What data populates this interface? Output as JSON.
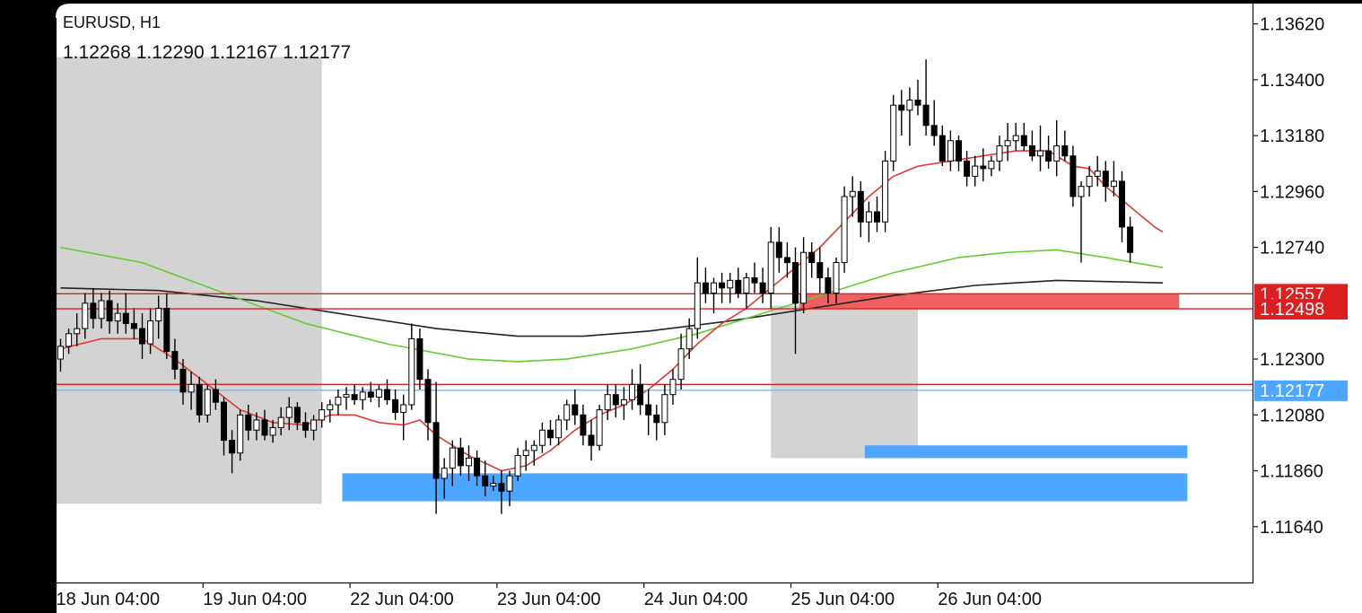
{
  "header": {
    "symbol_timeframe": "EURUSD, H1",
    "ohlc": "1.12268 1.12290 1.12167 1.12177"
  },
  "colors": {
    "background": "#ffffff",
    "frame": "#000000",
    "bull_candle": "#ffffff",
    "bear_candle": "#000000",
    "ma_fast": "#e53935",
    "ma_mid": "#66cc33",
    "ma_slow": "#222222",
    "support_zone": "#4da6ff",
    "resistance_zone": "#f06060",
    "session_box": "#d3d3d3",
    "level_line": "#dd1f1f",
    "bid_line": "#7fb8ee"
  },
  "chart_data": {
    "type": "candlestick",
    "symbol": "EURUSD",
    "timeframe": "H1",
    "ylim": [
      1.1142,
      1.137
    ],
    "y_ticks": [
      "1.13620",
      "1.13400",
      "1.13180",
      "1.12960",
      "1.12740",
      "1.12300",
      "1.12080",
      "1.11860",
      "1.11640"
    ],
    "x_ticks": [
      "18 Jun 04:00",
      "19 Jun 04:00",
      "22 Jun 04:00",
      "23 Jun 04:00",
      "24 Jun 04:00",
      "25 Jun 04:00",
      "26 Jun 04:00"
    ],
    "bar_count": 135,
    "x_tick_bars": [
      0,
      18,
      36,
      54,
      72,
      90,
      108
    ],
    "bid_price": 1.12177,
    "price_tags": [
      {
        "label": "1.12557",
        "price": 1.12557,
        "color": "#dd1f1f"
      },
      {
        "label": "1.12498",
        "price": 1.12498,
        "color": "#dd1f1f"
      },
      {
        "label": "1.12177",
        "price": 1.12177,
        "color": "#4da6ff"
      }
    ],
    "horizontal_lines": [
      {
        "price": 1.12557,
        "color": "#dd1f1f"
      },
      {
        "price": 1.12498,
        "color": "#dd1f1f"
      },
      {
        "price": 1.122,
        "color": "#dd1f1f"
      },
      {
        "price": 1.12177,
        "color": "#7fb8ee"
      }
    ],
    "zones": [
      {
        "type": "session",
        "bar_from": -1,
        "bar_to": 32,
        "p_top": 1.1349,
        "p_bottom": 1.1173
      },
      {
        "type": "session",
        "bar_from": 87,
        "bar_to": 105,
        "p_top": 1.1251,
        "p_bottom": 1.1191
      },
      {
        "type": "support",
        "bar_from": 34.5,
        "bar_to": 138,
        "p_top": 1.1185,
        "p_bottom": 1.1174
      },
      {
        "type": "support",
        "bar_from": 98.5,
        "bar_to": 138,
        "p_top": 1.1196,
        "p_bottom": 1.1191
      },
      {
        "type": "resistance",
        "bar_from": 90.5,
        "bar_to": 137,
        "p_top": 1.12557,
        "p_bottom": 1.12498
      }
    ],
    "candles": [
      [
        1.123,
        1.1238,
        1.1225,
        1.1235
      ],
      [
        1.1235,
        1.1242,
        1.1232,
        1.124
      ],
      [
        1.124,
        1.1248,
        1.1235,
        1.1242
      ],
      [
        1.1242,
        1.1256,
        1.1238,
        1.1252
      ],
      [
        1.1252,
        1.1258,
        1.1242,
        1.1246
      ],
      [
        1.1246,
        1.1256,
        1.1242,
        1.1253
      ],
      [
        1.1253,
        1.1257,
        1.124,
        1.1245
      ],
      [
        1.1245,
        1.1252,
        1.124,
        1.1248
      ],
      [
        1.1248,
        1.1256,
        1.124,
        1.1244
      ],
      [
        1.1244,
        1.125,
        1.1238,
        1.1242
      ],
      [
        1.1242,
        1.1248,
        1.123,
        1.1236
      ],
      [
        1.1236,
        1.125,
        1.1232,
        1.1245
      ],
      [
        1.1245,
        1.1255,
        1.1238,
        1.125
      ],
      [
        1.125,
        1.1256,
        1.123,
        1.1233
      ],
      [
        1.1233,
        1.1238,
        1.1222,
        1.1226
      ],
      [
        1.1226,
        1.123,
        1.1212,
        1.1217
      ],
      [
        1.1217,
        1.1225,
        1.121,
        1.122
      ],
      [
        1.122,
        1.1223,
        1.1205,
        1.1208
      ],
      [
        1.1208,
        1.122,
        1.1205,
        1.1218
      ],
      [
        1.1218,
        1.1222,
        1.121,
        1.1213
      ],
      [
        1.1213,
        1.1215,
        1.1192,
        1.1198
      ],
      [
        1.1198,
        1.1202,
        1.1185,
        1.1193
      ],
      [
        1.1193,
        1.121,
        1.119,
        1.1208
      ],
      [
        1.1208,
        1.1212,
        1.1198,
        1.1202
      ],
      [
        1.1202,
        1.1209,
        1.1198,
        1.1206
      ],
      [
        1.1206,
        1.121,
        1.1198,
        1.12
      ],
      [
        1.12,
        1.1206,
        1.1197,
        1.1203
      ],
      [
        1.1203,
        1.1211,
        1.12,
        1.1207
      ],
      [
        1.1207,
        1.1215,
        1.1202,
        1.1211
      ],
      [
        1.1211,
        1.1213,
        1.1202,
        1.1205
      ],
      [
        1.1205,
        1.1209,
        1.1199,
        1.1202
      ],
      [
        1.1202,
        1.1208,
        1.1198,
        1.1206
      ],
      [
        1.1206,
        1.1213,
        1.1203,
        1.121
      ],
      [
        1.121,
        1.1214,
        1.1205,
        1.1212
      ],
      [
        1.1212,
        1.1218,
        1.1208,
        1.1215
      ],
      [
        1.1215,
        1.1219,
        1.121,
        1.1216
      ],
      [
        1.1216,
        1.122,
        1.1212,
        1.1214
      ],
      [
        1.1214,
        1.1219,
        1.121,
        1.1217
      ],
      [
        1.1217,
        1.1221,
        1.1213,
        1.1215
      ],
      [
        1.1215,
        1.122,
        1.1211,
        1.1218
      ],
      [
        1.1218,
        1.1222,
        1.1212,
        1.1214
      ],
      [
        1.1214,
        1.1218,
        1.1206,
        1.1209
      ],
      [
        1.1209,
        1.1216,
        1.1198,
        1.1212
      ],
      [
        1.1212,
        1.1244,
        1.121,
        1.1238
      ],
      [
        1.1238,
        1.1242,
        1.1218,
        1.1222
      ],
      [
        1.1222,
        1.1226,
        1.1198,
        1.1205
      ],
      [
        1.1205,
        1.1221,
        1.1169,
        1.1183
      ],
      [
        1.1183,
        1.1191,
        1.1175,
        1.1187
      ],
      [
        1.1187,
        1.1198,
        1.118,
        1.1195
      ],
      [
        1.1195,
        1.1199,
        1.1184,
        1.1188
      ],
      [
        1.1188,
        1.1196,
        1.1182,
        1.1191
      ],
      [
        1.1191,
        1.1194,
        1.118,
        1.1184
      ],
      [
        1.1184,
        1.119,
        1.1176,
        1.118
      ],
      [
        1.118,
        1.1184,
        1.1178,
        1.1181
      ],
      [
        1.1181,
        1.1186,
        1.1169,
        1.1178
      ],
      [
        1.1178,
        1.1186,
        1.1172,
        1.1184
      ],
      [
        1.1184,
        1.1195,
        1.1182,
        1.1192
      ],
      [
        1.1192,
        1.1198,
        1.1186,
        1.1194
      ],
      [
        1.1194,
        1.1198,
        1.1188,
        1.1196
      ],
      [
        1.1196,
        1.1205,
        1.1193,
        1.1202
      ],
      [
        1.1202,
        1.1206,
        1.1196,
        1.1199
      ],
      [
        1.1199,
        1.1208,
        1.1196,
        1.1206
      ],
      [
        1.1206,
        1.1214,
        1.1202,
        1.1212
      ],
      [
        1.1212,
        1.1218,
        1.1204,
        1.1208
      ],
      [
        1.1208,
        1.1212,
        1.1196,
        1.12
      ],
      [
        1.12,
        1.1206,
        1.119,
        1.1196
      ],
      [
        1.1196,
        1.1212,
        1.1194,
        1.121
      ],
      [
        1.121,
        1.122,
        1.1206,
        1.1216
      ],
      [
        1.1216,
        1.122,
        1.1207,
        1.1212
      ],
      [
        1.1212,
        1.1219,
        1.1206,
        1.1214
      ],
      [
        1.1214,
        1.1226,
        1.121,
        1.122
      ],
      [
        1.122,
        1.1228,
        1.1208,
        1.1212
      ],
      [
        1.1212,
        1.1218,
        1.12,
        1.1208
      ],
      [
        1.1208,
        1.1212,
        1.1198,
        1.1205
      ],
      [
        1.1205,
        1.122,
        1.12,
        1.1216
      ],
      [
        1.1216,
        1.1226,
        1.1212,
        1.1222
      ],
      [
        1.1222,
        1.124,
        1.1218,
        1.1234
      ],
      [
        1.1234,
        1.1246,
        1.123,
        1.1242
      ],
      [
        1.1242,
        1.127,
        1.1238,
        1.126
      ],
      [
        1.126,
        1.1266,
        1.1252,
        1.1256
      ],
      [
        1.1256,
        1.1262,
        1.1248,
        1.126
      ],
      [
        1.126,
        1.1264,
        1.1252,
        1.1258
      ],
      [
        1.1258,
        1.1264,
        1.1252,
        1.1261
      ],
      [
        1.1261,
        1.1266,
        1.1254,
        1.1256
      ],
      [
        1.1256,
        1.1264,
        1.125,
        1.1262
      ],
      [
        1.1262,
        1.1268,
        1.1256,
        1.126
      ],
      [
        1.126,
        1.1266,
        1.1252,
        1.1256
      ],
      [
        1.1256,
        1.1282,
        1.125,
        1.1276
      ],
      [
        1.1276,
        1.1282,
        1.1264,
        1.127
      ],
      [
        1.127,
        1.1276,
        1.1262,
        1.1268
      ],
      [
        1.1268,
        1.1274,
        1.1232,
        1.1252
      ],
      [
        1.1252,
        1.1278,
        1.1248,
        1.1272
      ],
      [
        1.1272,
        1.1276,
        1.1262,
        1.1268
      ],
      [
        1.1268,
        1.1274,
        1.1256,
        1.1262
      ],
      [
        1.1262,
        1.1266,
        1.1252,
        1.1256
      ],
      [
        1.1256,
        1.127,
        1.1252,
        1.1268
      ],
      [
        1.1268,
        1.1298,
        1.1264,
        1.1294
      ],
      [
        1.1294,
        1.1302,
        1.1286,
        1.1296
      ],
      [
        1.1296,
        1.13,
        1.1278,
        1.1284
      ],
      [
        1.1284,
        1.1292,
        1.1276,
        1.1288
      ],
      [
        1.1288,
        1.1294,
        1.128,
        1.1284
      ],
      [
        1.1284,
        1.1312,
        1.128,
        1.1308
      ],
      [
        1.1308,
        1.1334,
        1.1304,
        1.133
      ],
      [
        1.133,
        1.1336,
        1.1318,
        1.1328
      ],
      [
        1.1328,
        1.1337,
        1.1314,
        1.1332
      ],
      [
        1.1332,
        1.134,
        1.1326,
        1.133
      ],
      [
        1.133,
        1.1348,
        1.1318,
        1.1322
      ],
      [
        1.1322,
        1.1332,
        1.1314,
        1.1318
      ],
      [
        1.1318,
        1.1322,
        1.1306,
        1.1308
      ],
      [
        1.1308,
        1.132,
        1.1304,
        1.1316
      ],
      [
        1.1316,
        1.1318,
        1.1304,
        1.1308
      ],
      [
        1.1308,
        1.1312,
        1.1298,
        1.1302
      ],
      [
        1.1302,
        1.131,
        1.1298,
        1.1306
      ],
      [
        1.1306,
        1.1313,
        1.13,
        1.1305
      ],
      [
        1.1305,
        1.131,
        1.1302,
        1.1308
      ],
      [
        1.1308,
        1.1318,
        1.1304,
        1.1314
      ],
      [
        1.1314,
        1.1323,
        1.1308,
        1.1316
      ],
      [
        1.1316,
        1.1323,
        1.1312,
        1.1318
      ],
      [
        1.1318,
        1.1323,
        1.1312,
        1.1314
      ],
      [
        1.1314,
        1.132,
        1.1308,
        1.131
      ],
      [
        1.131,
        1.1322,
        1.1304,
        1.1312
      ],
      [
        1.1312,
        1.1318,
        1.1305,
        1.1308
      ],
      [
        1.1308,
        1.1324,
        1.1302,
        1.1314
      ],
      [
        1.1314,
        1.132,
        1.1308,
        1.131
      ],
      [
        1.131,
        1.1314,
        1.129,
        1.1294
      ],
      [
        1.1294,
        1.13,
        1.1268,
        1.1298
      ],
      [
        1.1298,
        1.1306,
        1.1294,
        1.1302
      ],
      [
        1.1302,
        1.131,
        1.1298,
        1.1304
      ],
      [
        1.1304,
        1.1308,
        1.1292,
        1.1298
      ],
      [
        1.1298,
        1.1308,
        1.1294,
        1.13
      ],
      [
        1.13,
        1.1304,
        1.1276,
        1.1282
      ],
      [
        1.1282,
        1.1286,
        1.1268,
        1.1272
      ]
    ],
    "ma_fast_points": [
      [
        0,
        1.1234
      ],
      [
        5,
        1.1238
      ],
      [
        10,
        1.1238
      ],
      [
        14,
        1.123
      ],
      [
        18,
        1.122
      ],
      [
        22,
        1.121
      ],
      [
        26,
        1.1205
      ],
      [
        30,
        1.1204
      ],
      [
        33,
        1.1208
      ],
      [
        36,
        1.1208
      ],
      [
        39,
        1.1205
      ],
      [
        42,
        1.1204
      ],
      [
        44,
        1.1206
      ],
      [
        46,
        1.12
      ],
      [
        50,
        1.1192
      ],
      [
        54,
        1.1186
      ],
      [
        57,
        1.1188
      ],
      [
        60,
        1.1194
      ],
      [
        63,
        1.1202
      ],
      [
        66,
        1.1208
      ],
      [
        69,
        1.1212
      ],
      [
        72,
        1.1218
      ],
      [
        75,
        1.1226
      ],
      [
        78,
        1.1236
      ],
      [
        81,
        1.1244
      ],
      [
        84,
        1.125
      ],
      [
        87,
        1.1258
      ],
      [
        90,
        1.1266
      ],
      [
        93,
        1.1274
      ],
      [
        96,
        1.1284
      ],
      [
        99,
        1.1294
      ],
      [
        102,
        1.1302
      ],
      [
        105,
        1.1306
      ],
      [
        109,
        1.1308
      ],
      [
        113,
        1.131
      ],
      [
        117,
        1.1312
      ],
      [
        121,
        1.1312
      ],
      [
        124,
        1.1306
      ],
      [
        126,
        1.1305
      ],
      [
        128,
        1.1298
      ],
      [
        131,
        1.129
      ],
      [
        134,
        1.1282
      ],
      [
        135,
        1.128
      ]
    ],
    "ma_mid_points": [
      [
        0,
        1.1274
      ],
      [
        10,
        1.1268
      ],
      [
        20,
        1.1256
      ],
      [
        30,
        1.1244
      ],
      [
        40,
        1.1236
      ],
      [
        50,
        1.123
      ],
      [
        56,
        1.1229
      ],
      [
        62,
        1.123
      ],
      [
        70,
        1.1234
      ],
      [
        78,
        1.124
      ],
      [
        86,
        1.1248
      ],
      [
        94,
        1.1256
      ],
      [
        102,
        1.1264
      ],
      [
        110,
        1.127
      ],
      [
        116,
        1.1272
      ],
      [
        122,
        1.1273
      ],
      [
        128,
        1.127
      ],
      [
        135,
        1.1266
      ]
    ],
    "ma_slow_points": [
      [
        0,
        1.1258
      ],
      [
        12,
        1.1257
      ],
      [
        24,
        1.1253
      ],
      [
        36,
        1.1247
      ],
      [
        46,
        1.1242
      ],
      [
        56,
        1.1239
      ],
      [
        64,
        1.1239
      ],
      [
        72,
        1.1241
      ],
      [
        82,
        1.1245
      ],
      [
        92,
        1.125
      ],
      [
        102,
        1.1255
      ],
      [
        112,
        1.1259
      ],
      [
        122,
        1.1261
      ],
      [
        135,
        1.126
      ]
    ]
  }
}
